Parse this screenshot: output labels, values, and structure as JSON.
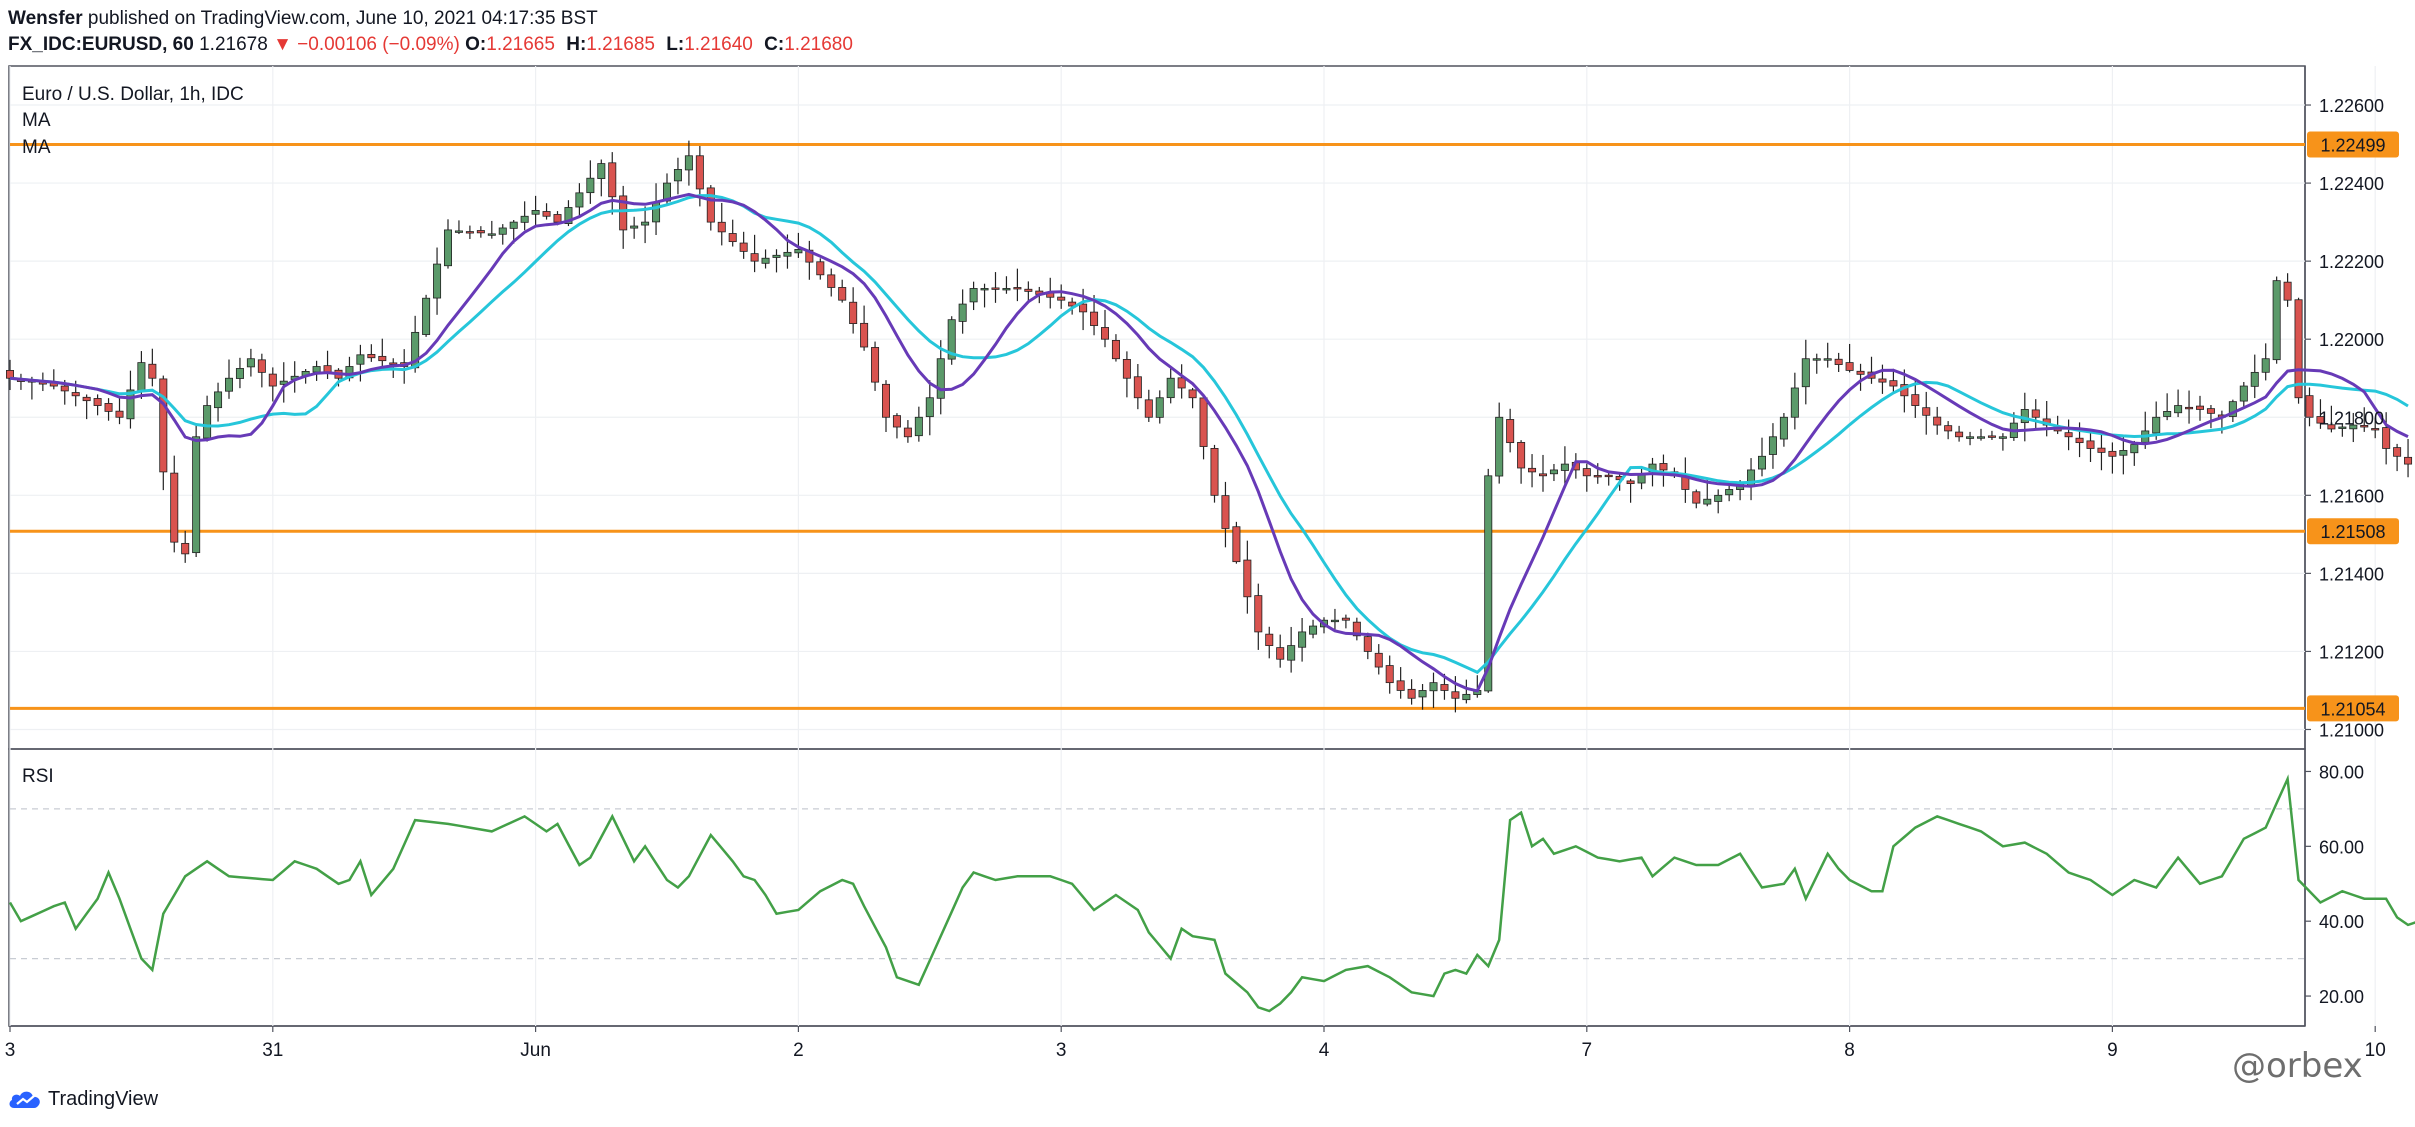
{
  "header": {
    "publisher": "Wensfer",
    "published_text": "published on TradingView.com, June 10, 2021 04:17:35 BST",
    "symbol": "FX_IDC:EURUSD, 60",
    "last": "1.21678",
    "change_arrow": "▼",
    "change": "−0.00106 (−0.09%)",
    "o_label": "O:",
    "o_value": "1.21665",
    "h_label": "H:",
    "h_value": "1.21685",
    "l_label": "L:",
    "l_value": "1.21640",
    "c_label": "C:",
    "c_value": "1.21680"
  },
  "legend": {
    "title": "Euro / U.S. Dollar, 1h, IDC",
    "ma1": "MA",
    "ma2": "MA",
    "rsi": "RSI"
  },
  "colors": {
    "up": "#5b9a6a",
    "down": "#d9534f",
    "ma_fast": "#673ab7",
    "ma_slow": "#26c6da",
    "level": "#f7931a",
    "rsi": "#43a047"
  },
  "footer": {
    "brand": "TradingView",
    "watermark": "@orbex"
  },
  "chart_data": [
    {
      "type": "candlestick",
      "title": "Euro / U.S. Dollar, 1h, IDC",
      "ylim": [
        1.2095,
        1.227
      ],
      "y_ticks": [
        "1.22600",
        "1.22400",
        "1.22200",
        "1.22000",
        "1.21800",
        "1.21600",
        "1.21400",
        "1.21200",
        "1.21000"
      ],
      "x_ticks": [
        {
          "label": "3",
          "pos": 0
        },
        {
          "label": "31",
          "pos": 24
        },
        {
          "label": "Jun",
          "pos": 48
        },
        {
          "label": "2",
          "pos": 72
        },
        {
          "label": "3",
          "pos": 96
        },
        {
          "label": "4",
          "pos": 120
        },
        {
          "label": "7",
          "pos": 144
        },
        {
          "label": "8",
          "pos": 168
        },
        {
          "label": "9",
          "pos": 192
        },
        {
          "label": "10",
          "pos": 216
        }
      ],
      "levels": [
        {
          "value": 1.22499,
          "label": "1.22499"
        },
        {
          "value": 1.21508,
          "label": "1.21508"
        },
        {
          "value": 1.21054,
          "label": "1.21054"
        }
      ],
      "close_anchors": [
        [
          0,
          1.219
        ],
        [
          4,
          1.2188
        ],
        [
          8,
          1.2183
        ],
        [
          10,
          1.218
        ],
        [
          12,
          1.2194
        ],
        [
          13,
          1.219
        ],
        [
          14,
          1.2166
        ],
        [
          15,
          1.2148
        ],
        [
          16,
          1.2145
        ],
        [
          17,
          1.2175
        ],
        [
          18,
          1.2183
        ],
        [
          20,
          1.219
        ],
        [
          22,
          1.2195
        ],
        [
          24,
          1.2188
        ],
        [
          28,
          1.2193
        ],
        [
          30,
          1.219
        ],
        [
          32,
          1.2196
        ],
        [
          36,
          1.2193
        ],
        [
          40,
          1.2228
        ],
        [
          44,
          1.2227
        ],
        [
          48,
          1.2233
        ],
        [
          50,
          1.223
        ],
        [
          54,
          1.2245
        ],
        [
          56,
          1.2228
        ],
        [
          58,
          1.223
        ],
        [
          60,
          1.224
        ],
        [
          62,
          1.2247
        ],
        [
          64,
          1.223
        ],
        [
          68,
          1.222
        ],
        [
          72,
          1.2223
        ],
        [
          76,
          1.221
        ],
        [
          78,
          1.2198
        ],
        [
          80,
          1.218
        ],
        [
          82,
          1.2175
        ],
        [
          84,
          1.2185
        ],
        [
          86,
          1.2205
        ],
        [
          88,
          1.2213
        ],
        [
          92,
          1.2213
        ],
        [
          96,
          1.221
        ],
        [
          98,
          1.2207
        ],
        [
          100,
          1.22
        ],
        [
          102,
          1.219
        ],
        [
          104,
          1.218
        ],
        [
          106,
          1.219
        ],
        [
          108,
          1.2185
        ],
        [
          110,
          1.216
        ],
        [
          112,
          1.2143
        ],
        [
          114,
          1.2125
        ],
        [
          116,
          1.2118
        ],
        [
          118,
          1.2125
        ],
        [
          120,
          1.2128
        ],
        [
          122,
          1.2128
        ],
        [
          124,
          1.212
        ],
        [
          126,
          1.2112
        ],
        [
          128,
          1.2108
        ],
        [
          130,
          1.2112
        ],
        [
          132,
          1.2108
        ],
        [
          134,
          1.211
        ],
        [
          135,
          1.2165
        ],
        [
          136,
          1.218
        ],
        [
          138,
          1.2167
        ],
        [
          140,
          1.2165
        ],
        [
          142,
          1.2168
        ],
        [
          144,
          1.2165
        ],
        [
          146,
          1.2165
        ],
        [
          148,
          1.2163
        ],
        [
          150,
          1.2168
        ],
        [
          152,
          1.2165
        ],
        [
          154,
          1.2158
        ],
        [
          156,
          1.216
        ],
        [
          158,
          1.2163
        ],
        [
          160,
          1.217
        ],
        [
          162,
          1.218
        ],
        [
          164,
          1.2195
        ],
        [
          166,
          1.2195
        ],
        [
          168,
          1.2192
        ],
        [
          170,
          1.219
        ],
        [
          172,
          1.2188
        ],
        [
          174,
          1.2183
        ],
        [
          176,
          1.2178
        ],
        [
          178,
          1.2175
        ],
        [
          180,
          1.2175
        ],
        [
          182,
          1.2175
        ],
        [
          184,
          1.2182
        ],
        [
          186,
          1.2178
        ],
        [
          188,
          1.2175
        ],
        [
          190,
          1.2172
        ],
        [
          192,
          1.217
        ],
        [
          194,
          1.2173
        ],
        [
          196,
          1.218
        ],
        [
          198,
          1.2183
        ],
        [
          200,
          1.2182
        ],
        [
          202,
          1.218
        ],
        [
          204,
          1.2188
        ],
        [
          206,
          1.2195
        ],
        [
          207,
          1.2215
        ],
        [
          208,
          1.221
        ],
        [
          209,
          1.2185
        ],
        [
          210,
          1.218
        ],
        [
          212,
          1.2177
        ],
        [
          214,
          1.2178
        ],
        [
          216,
          1.2177
        ],
        [
          217,
          1.2172
        ],
        [
          218,
          1.217
        ],
        [
          219,
          1.2168
        ]
      ]
    },
    {
      "type": "line",
      "title": "RSI",
      "ylim": [
        12,
        86
      ],
      "y_ticks": [
        "80.00",
        "60.00",
        "40.00",
        "20.00"
      ],
      "bands": [
        70,
        30
      ],
      "anchors": [
        [
          0,
          45
        ],
        [
          1,
          40
        ],
        [
          4,
          44
        ],
        [
          5,
          45
        ],
        [
          6,
          38
        ],
        [
          8,
          46
        ],
        [
          9,
          53
        ],
        [
          10,
          46
        ],
        [
          12,
          30
        ],
        [
          13,
          27
        ],
        [
          14,
          42
        ],
        [
          16,
          52
        ],
        [
          18,
          56
        ],
        [
          20,
          52
        ],
        [
          24,
          51
        ],
        [
          26,
          56
        ],
        [
          28,
          54
        ],
        [
          30,
          50
        ],
        [
          31,
          51
        ],
        [
          32,
          56
        ],
        [
          33,
          47
        ],
        [
          35,
          54
        ],
        [
          37,
          67
        ],
        [
          40,
          66
        ],
        [
          44,
          64
        ],
        [
          47,
          68
        ],
        [
          49,
          64
        ],
        [
          50,
          66
        ],
        [
          52,
          55
        ],
        [
          53,
          57
        ],
        [
          55,
          68
        ],
        [
          57,
          56
        ],
        [
          58,
          60
        ],
        [
          60,
          51
        ],
        [
          61,
          49
        ],
        [
          62,
          52
        ],
        [
          64,
          63
        ],
        [
          66,
          56
        ],
        [
          67,
          52
        ],
        [
          68,
          51
        ],
        [
          69,
          47
        ],
        [
          70,
          42
        ],
        [
          72,
          43
        ],
        [
          74,
          48
        ],
        [
          76,
          51
        ],
        [
          77,
          50
        ],
        [
          78,
          44
        ],
        [
          80,
          33
        ],
        [
          81,
          25
        ],
        [
          83,
          23
        ],
        [
          85,
          36
        ],
        [
          87,
          49
        ],
        [
          88,
          53
        ],
        [
          90,
          51
        ],
        [
          92,
          52
        ],
        [
          95,
          52
        ],
        [
          97,
          50
        ],
        [
          99,
          43
        ],
        [
          101,
          47
        ],
        [
          103,
          43
        ],
        [
          104,
          37
        ],
        [
          106,
          30
        ],
        [
          107,
          38
        ],
        [
          108,
          36
        ],
        [
          110,
          35
        ],
        [
          111,
          26
        ],
        [
          113,
          21
        ],
        [
          114,
          17
        ],
        [
          115,
          16
        ],
        [
          116,
          18
        ],
        [
          117,
          21
        ],
        [
          118,
          25
        ],
        [
          120,
          24
        ],
        [
          122,
          27
        ],
        [
          124,
          28
        ],
        [
          126,
          25
        ],
        [
          128,
          21
        ],
        [
          130,
          20
        ],
        [
          131,
          26
        ],
        [
          132,
          27
        ],
        [
          133,
          26
        ],
        [
          134,
          31
        ],
        [
          135,
          28
        ],
        [
          136,
          35
        ],
        [
          137,
          67
        ],
        [
          138,
          69
        ],
        [
          139,
          60
        ],
        [
          140,
          62
        ],
        [
          141,
          58
        ],
        [
          143,
          60
        ],
        [
          145,
          57
        ],
        [
          147,
          56
        ],
        [
          149,
          57
        ],
        [
          150,
          52
        ],
        [
          152,
          57
        ],
        [
          154,
          55
        ],
        [
          156,
          55
        ],
        [
          158,
          58
        ],
        [
          160,
          49
        ],
        [
          162,
          50
        ],
        [
          163,
          54
        ],
        [
          164,
          46
        ],
        [
          166,
          58
        ],
        [
          167,
          54
        ],
        [
          168,
          51
        ],
        [
          170,
          48
        ],
        [
          171,
          48
        ],
        [
          172,
          60
        ],
        [
          174,
          65
        ],
        [
          176,
          68
        ],
        [
          178,
          66
        ],
        [
          180,
          64
        ],
        [
          182,
          60
        ],
        [
          184,
          61
        ],
        [
          186,
          58
        ],
        [
          188,
          53
        ],
        [
          190,
          51
        ],
        [
          192,
          47
        ],
        [
          194,
          51
        ],
        [
          196,
          49
        ],
        [
          198,
          57
        ],
        [
          200,
          50
        ],
        [
          202,
          52
        ],
        [
          204,
          62
        ],
        [
          206,
          65
        ],
        [
          208,
          78
        ],
        [
          209,
          51
        ],
        [
          211,
          45
        ],
        [
          213,
          48
        ],
        [
          215,
          46
        ],
        [
          217,
          46
        ],
        [
          218,
          41
        ],
        [
          219,
          39
        ],
        [
          220,
          40
        ]
      ]
    }
  ]
}
